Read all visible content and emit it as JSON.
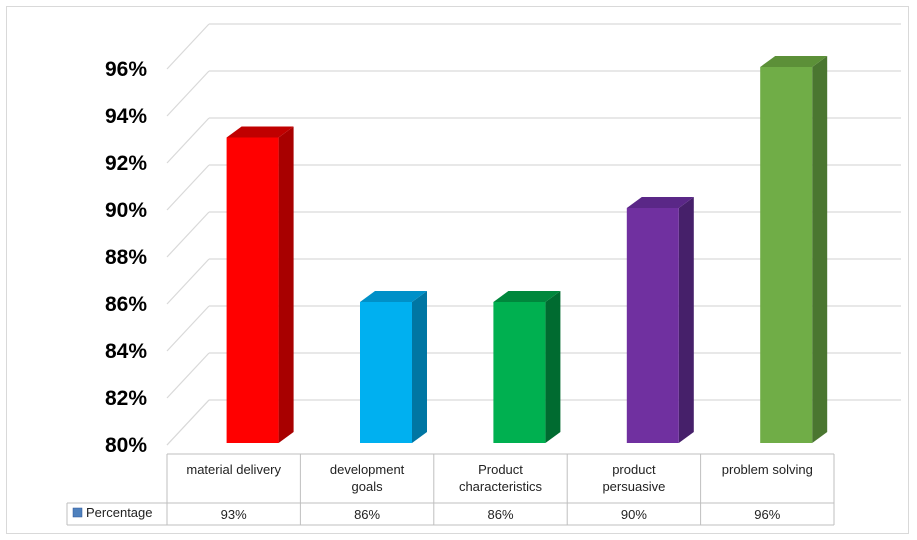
{
  "chart_data": {
    "type": "bar",
    "categories": [
      "material delivery",
      "development goals",
      "Product characteristics",
      "product persuasive",
      "problem solving"
    ],
    "series": [
      {
        "name": "Percentage",
        "values": [
          93,
          86,
          86,
          90,
          96
        ]
      }
    ],
    "value_labels": [
      "93%",
      "86%",
      "86%",
      "90%",
      "96%"
    ],
    "ylim": [
      80,
      96
    ],
    "yticks": [
      "80%",
      "82%",
      "84%",
      "86%",
      "88%",
      "90%",
      "92%",
      "94%",
      "96%"
    ],
    "grid": true,
    "legend": "data-table",
    "colors": {
      "bars": [
        "#ff0000",
        "#00b0f0",
        "#00b050",
        "#7030a0",
        "#70ad47"
      ],
      "bar_sides": [
        "#a80000",
        "#0076a3",
        "#006b30",
        "#46206a",
        "#4a7630"
      ],
      "bar_tops": [
        "#c00000",
        "#0090c8",
        "#00873c",
        "#5a2787",
        "#5c9038"
      ],
      "grid": "#d9d9d9",
      "legend_key": "#4f81bd"
    }
  }
}
